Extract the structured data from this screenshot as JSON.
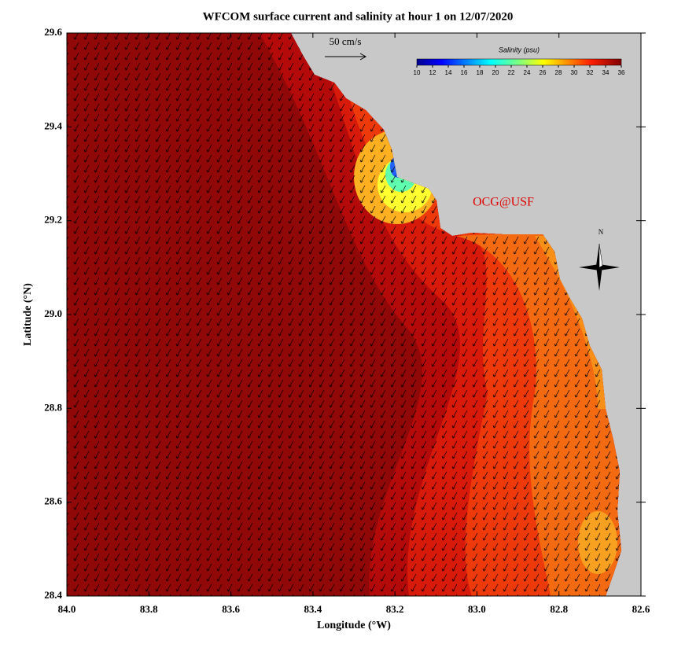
{
  "chart_data": {
    "type": "map",
    "title": "WFCOM surface current and salinity at hour 1 on 12/07/2020",
    "x_label": "Longitude (°W)",
    "y_label": "Latitude (°N)",
    "xlim": [
      84.0,
      82.6
    ],
    "ylim": [
      28.4,
      29.6
    ],
    "xticks": [
      {
        "value": 84.0,
        "label": "84.0"
      },
      {
        "value": 83.8,
        "label": "83.8"
      },
      {
        "value": 83.6,
        "label": "83.6"
      },
      {
        "value": 83.4,
        "label": "83.4"
      },
      {
        "value": 83.2,
        "label": "83.2"
      },
      {
        "value": 83.0,
        "label": "83.0"
      },
      {
        "value": 82.8,
        "label": "82.8"
      },
      {
        "value": 82.6,
        "label": "82.6"
      }
    ],
    "yticks": [
      {
        "value": 28.4,
        "label": "28.4"
      },
      {
        "value": 28.6,
        "label": "28.6"
      },
      {
        "value": 28.8,
        "label": "28.8"
      },
      {
        "value": 29.0,
        "label": "29.0"
      },
      {
        "value": 29.2,
        "label": "29.2"
      },
      {
        "value": 29.4,
        "label": "29.4"
      },
      {
        "value": 29.6,
        "label": "29.6"
      }
    ],
    "colorbar": {
      "title": "Salinity (psu)",
      "lim": [
        10,
        36
      ],
      "ticks": [
        10,
        12,
        14,
        16,
        18,
        20,
        22,
        24,
        26,
        28,
        30,
        32,
        34,
        36
      ]
    },
    "scale_label": "50 cm/s",
    "credit": "OCG@USF",
    "compass_label": "N"
  }
}
